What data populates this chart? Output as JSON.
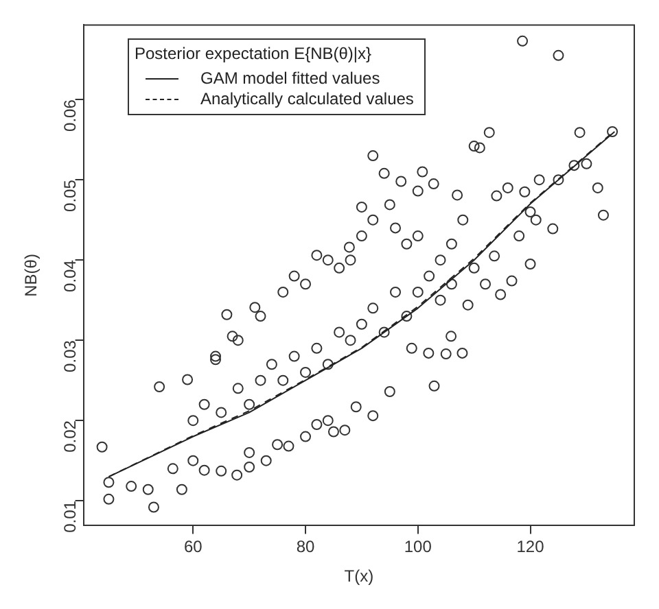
{
  "chart_data": {
    "type": "scatter",
    "xlabel": "T(x)",
    "ylabel": "NB(θ)",
    "legend_title": "Posterior expectation E{NB(θ)|x}",
    "legend": "top left",
    "grid": false,
    "xlim": [
      40.5,
      138.5
    ],
    "ylim": [
      0.0069,
      0.0693
    ],
    "xticks": [
      60,
      80,
      100,
      120
    ],
    "yticks": [
      0.01,
      0.02,
      0.03,
      0.04,
      0.05,
      0.06
    ],
    "series": [
      {
        "color": "#333333",
        "marker": "circle",
        "x": [
          118.6,
          125,
          112.7,
          92,
          94,
          100.8,
          97,
          102.8,
          110,
          111,
          128.8,
          127.8,
          132,
          133,
          124,
          120,
          121,
          121.6,
          119,
          114,
          116,
          114.7,
          116.7,
          90,
          95,
          82,
          87.8,
          100,
          113.6,
          107,
          43.8,
          45,
          45,
          49,
          53,
          52,
          54,
          58,
          56.4,
          59,
          66,
          64,
          67,
          71,
          67.8,
          73,
          77,
          85,
          87,
          92,
          89,
          95,
          102.9,
          107.9,
          105.9,
          105,
          101.9,
          108.9,
          98.9,
          60,
          62,
          65,
          70,
          70,
          75,
          80,
          82,
          84,
          64,
          68,
          72,
          76,
          78,
          80,
          84,
          86,
          88,
          90,
          92,
          96,
          98,
          100,
          104,
          106,
          108,
          60,
          62,
          65,
          68,
          70,
          72,
          74,
          76,
          78,
          80,
          82,
          84,
          86,
          88,
          90,
          92,
          94,
          96,
          98,
          100,
          102,
          104,
          106,
          110,
          112,
          118,
          120,
          125,
          130,
          134.6
        ],
        "values": [
          0.0673,
          0.0655,
          0.0559,
          0.053,
          0.0508,
          0.051,
          0.0498,
          0.0495,
          0.0542,
          0.054,
          0.0559,
          0.0518,
          0.049,
          0.0456,
          0.0439,
          0.0395,
          0.045,
          0.05,
          0.0485,
          0.048,
          0.049,
          0.0357,
          0.0374,
          0.0466,
          0.0469,
          0.0406,
          0.0416,
          0.0486,
          0.0405,
          0.0481,
          0.0167,
          0.0102,
          0.0123,
          0.0118,
          0.0092,
          0.0114,
          0.0242,
          0.0114,
          0.014,
          0.0251,
          0.0332,
          0.0276,
          0.0305,
          0.0341,
          0.0132,
          0.015,
          0.0168,
          0.0186,
          0.0188,
          0.0206,
          0.0217,
          0.0236,
          0.0243,
          0.0284,
          0.0305,
          0.0283,
          0.0284,
          0.0344,
          0.029,
          0.015,
          0.0138,
          0.0137,
          0.0142,
          0.016,
          0.017,
          0.018,
          0.0195,
          0.02,
          0.028,
          0.03,
          0.033,
          0.036,
          0.038,
          0.037,
          0.04,
          0.039,
          0.04,
          0.043,
          0.045,
          0.044,
          0.042,
          0.043,
          0.04,
          0.042,
          0.045,
          0.02,
          0.022,
          0.021,
          0.024,
          0.022,
          0.025,
          0.027,
          0.025,
          0.028,
          0.026,
          0.029,
          0.027,
          0.031,
          0.03,
          0.032,
          0.034,
          0.031,
          0.036,
          0.033,
          0.036,
          0.038,
          0.035,
          0.037,
          0.039,
          0.037,
          0.043,
          0.046,
          0.05,
          0.052,
          0.056
        ]
      },
      {
        "type": "line",
        "name": "GAM model fitted values",
        "color": "#222222",
        "marker": "none",
        "line_style": "solid",
        "x": [
          45,
          60,
          70,
          80,
          90,
          100,
          110,
          120,
          135
        ],
        "values": [
          0.013,
          0.018,
          0.021,
          0.025,
          0.029,
          0.034,
          0.04,
          0.047,
          0.056
        ]
      },
      {
        "type": "line",
        "name": "Analytically calculated values",
        "color": "#222222",
        "marker": "none",
        "line_style": "dashed",
        "x": [
          45,
          60,
          70,
          80,
          90,
          100,
          110,
          120,
          135
        ],
        "values": [
          0.013,
          0.0181,
          0.0212,
          0.0251,
          0.0291,
          0.0342,
          0.0402,
          0.0471,
          0.0561
        ]
      }
    ]
  }
}
